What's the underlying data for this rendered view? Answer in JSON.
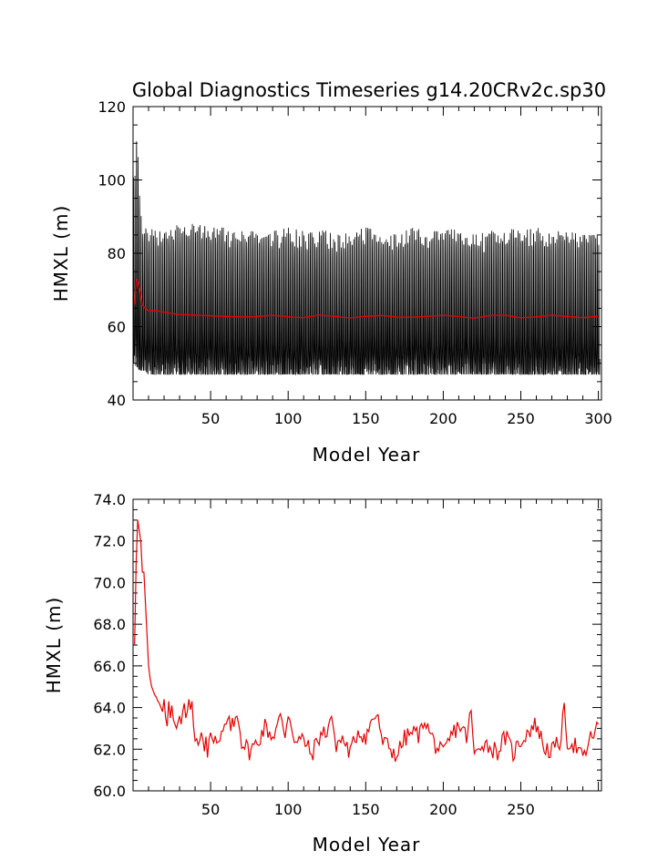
{
  "chart_data": [
    {
      "type": "line",
      "title": "Global Diagnostics Timeseries g14.20CRv2c.sp30",
      "xlabel": "Model Year",
      "ylabel": "HMXL (m)",
      "xlim": [
        0,
        302
      ],
      "ylim": [
        40,
        120
      ],
      "xticks": [
        50,
        100,
        150,
        200,
        250,
        300
      ],
      "xtick_labels": [
        "50",
        "100",
        "150",
        "200",
        "250",
        "300"
      ],
      "yticks": [
        40,
        60,
        80,
        100,
        120
      ],
      "ytick_labels": [
        "40",
        "60",
        "80",
        "100",
        "120"
      ],
      "grid": false,
      "series": [
        {
          "color": "#000000",
          "kind": "monthly",
          "x": [
            1,
            2,
            3,
            4,
            5,
            6,
            8,
            10,
            15,
            20,
            30,
            40,
            50,
            60,
            70,
            80,
            90,
            100,
            110,
            120,
            130,
            140,
            150,
            160,
            170,
            180,
            190,
            200,
            210,
            220,
            230,
            240,
            250,
            260,
            270,
            280,
            290,
            300
          ],
          "annual_max": [
            100,
            110,
            108,
            97,
            91,
            88,
            87,
            86,
            85,
            85,
            87,
            87,
            86,
            86,
            85,
            85,
            85,
            86,
            85,
            86,
            84,
            85,
            86,
            85,
            84,
            86,
            85,
            85,
            86,
            84,
            85,
            86,
            85,
            86,
            85,
            85,
            84,
            84
          ],
          "annual_min": [
            51,
            50,
            50,
            49,
            49,
            49,
            49,
            48,
            48,
            48,
            48,
            48,
            48,
            48,
            48,
            48,
            48,
            48,
            48,
            48,
            48,
            48,
            48,
            48,
            48,
            48,
            48,
            48,
            48,
            48,
            48,
            48,
            48,
            48,
            48,
            48,
            48,
            48
          ]
        },
        {
          "color": "#e60000",
          "kind": "annual",
          "x": [
            1,
            2,
            3,
            4,
            5,
            6,
            8,
            10,
            15,
            20,
            30,
            40,
            50,
            60,
            70,
            80,
            90,
            100,
            110,
            120,
            130,
            140,
            150,
            160,
            170,
            180,
            190,
            200,
            210,
            220,
            230,
            240,
            250,
            260,
            270,
            280,
            290,
            300
          ],
          "values": [
            66,
            73,
            72,
            70.5,
            68.5,
            66,
            64.9,
            64.5,
            64.1,
            63.8,
            63.6,
            63.2,
            62.6,
            62.8,
            63,
            62.6,
            62.8,
            62.9,
            62.7,
            62.9,
            62.6,
            62.7,
            62.9,
            62.7,
            62.6,
            62.9,
            62.7,
            62.8,
            62.9,
            62.6,
            62.8,
            62.9,
            62.7,
            62.8,
            62.8,
            62.7,
            62.8,
            62.8
          ]
        }
      ]
    },
    {
      "type": "line",
      "title": "",
      "xlabel": "Model Year",
      "ylabel": "HMXL (m)",
      "xlim": [
        0,
        302
      ],
      "ylim": [
        60,
        74
      ],
      "xticks": [
        50,
        100,
        150,
        200,
        250
      ],
      "xtick_labels": [
        "50",
        "100",
        "150",
        "200",
        "250"
      ],
      "yticks": [
        60,
        62,
        64,
        66,
        68,
        70,
        72,
        74
      ],
      "ytick_labels": [
        "60.0",
        "62.0",
        "64.0",
        "66.0",
        "68.0",
        "70.0",
        "72.0",
        "74.0"
      ],
      "grid": false,
      "series": [
        {
          "color": "#e60000",
          "x": [
            1,
            2,
            3,
            4,
            5,
            6,
            7,
            8,
            9,
            10,
            11,
            12,
            13,
            14,
            15,
            16,
            17,
            18,
            19,
            20,
            21,
            22,
            23,
            24,
            25,
            26,
            27,
            28,
            29,
            30,
            31,
            32,
            33,
            34,
            35,
            36,
            37,
            38,
            39,
            40,
            41,
            42,
            43,
            44,
            45,
            46,
            47,
            48,
            49,
            50,
            55,
            60,
            65,
            67,
            70,
            75,
            80,
            85,
            90,
            95,
            98,
            100,
            105,
            110,
            115,
            120,
            125,
            128,
            130,
            135,
            140,
            145,
            150,
            155,
            158,
            160,
            165,
            170,
            175,
            180,
            185,
            188,
            190,
            195,
            200,
            205,
            210,
            215,
            218,
            220,
            225,
            230,
            235,
            240,
            245,
            250,
            255,
            260,
            265,
            270,
            275,
            278,
            280,
            285,
            290,
            295,
            300
          ],
          "values": [
            67,
            71,
            73,
            72.5,
            72,
            70.5,
            70.5,
            69,
            67.5,
            66,
            65.4,
            65,
            64.8,
            64.6,
            64.5,
            64.3,
            64.2,
            64,
            63.8,
            64.4,
            63.5,
            63.1,
            64.3,
            63.5,
            64.1,
            63.4,
            63.2,
            63,
            63.3,
            63.6,
            63.2,
            63.8,
            64.2,
            63.5,
            63.8,
            64.4,
            63.9,
            64.3,
            63.1,
            62.4,
            62.5,
            62.2,
            62.4,
            62.8,
            62.5,
            61.9,
            62.6,
            61.6,
            62.5,
            63,
            62.1,
            63.2,
            63.1,
            63.9,
            62.4,
            61.9,
            62.3,
            63.1,
            62.6,
            63.5,
            62.7,
            63.8,
            62.3,
            62.5,
            61.7,
            62.6,
            62.9,
            63.7,
            62.2,
            62.5,
            61.8,
            62.9,
            62.6,
            63.5,
            63.7,
            62.4,
            62.1,
            61.7,
            62.5,
            62.8,
            62.7,
            63.6,
            63,
            62.2,
            61.7,
            62.6,
            63.2,
            62.6,
            63.8,
            61.6,
            62.4,
            62.1,
            61.9,
            62.6,
            61.8,
            62.4,
            62.9,
            63.2,
            62.1,
            61.9,
            62.3,
            63.8,
            62.4,
            62.2,
            61.5,
            62.5,
            63.2
          ]
        }
      ]
    }
  ]
}
